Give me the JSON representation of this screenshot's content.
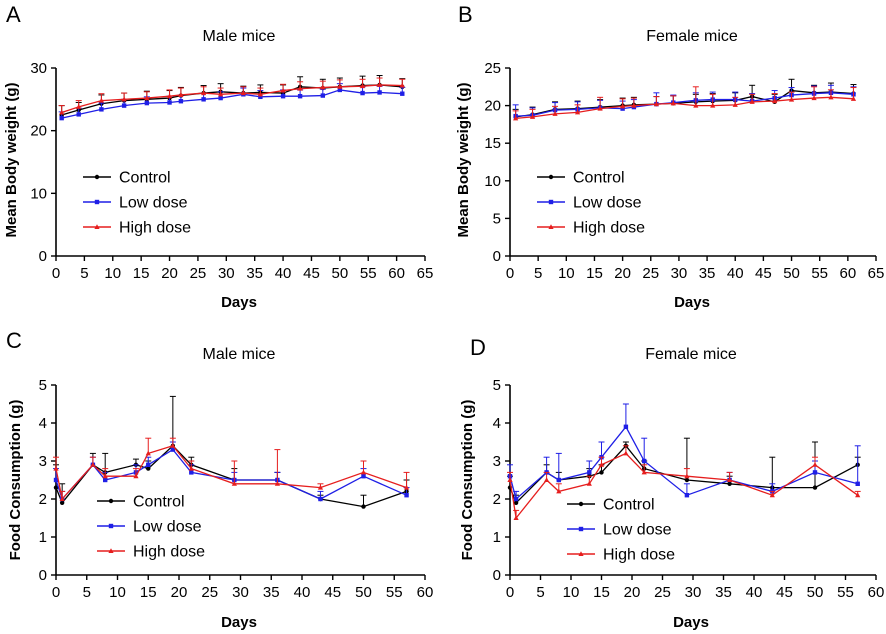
{
  "chart_data": [
    {
      "panel": "A",
      "type": "line",
      "title": "Male mice",
      "xlabel": "Days",
      "ylabel": "Mean Body weight (g)",
      "xlim": [
        0,
        65
      ],
      "ylim": [
        0,
        30
      ],
      "xticks": [
        "0",
        "5",
        "10",
        "15",
        "20",
        "25",
        "30",
        "35",
        "40",
        "45",
        "50",
        "55",
        "60",
        "65"
      ],
      "yticks": [
        "0",
        "10",
        "20",
        "30"
      ],
      "legend_position": "center-left",
      "x": [
        1,
        4,
        8,
        12,
        16,
        20,
        22,
        26,
        29,
        33,
        36,
        40,
        43,
        47,
        50,
        54,
        57,
        61
      ],
      "series": [
        {
          "name": "Control",
          "color": "#000000",
          "marker": "circle",
          "values": [
            22.5,
            23.3,
            24.3,
            24.8,
            25.0,
            25.2,
            25.6,
            26.0,
            26.2,
            26.0,
            26.1,
            26.0,
            27.0,
            26.8,
            27.0,
            27.2,
            27.3,
            27.0
          ],
          "errors": [
            1.5,
            1.2,
            1.4,
            1.2,
            1.3,
            1.2,
            1.3,
            1.2,
            1.3,
            1.1,
            1.2,
            1.3,
            1.6,
            1.4,
            1.4,
            1.5,
            1.5,
            1.3
          ]
        },
        {
          "name": "Low dose",
          "color": "#1f1fe6",
          "marker": "square",
          "values": [
            22.0,
            22.6,
            23.4,
            24.0,
            24.4,
            24.5,
            24.7,
            25.0,
            25.2,
            25.8,
            25.4,
            25.5,
            25.5,
            25.6,
            26.5,
            26.0,
            26.1,
            25.9
          ],
          "errors": [
            1.0,
            1.0,
            1.0,
            1.0,
            1.0,
            1.0,
            1.0,
            1.0,
            1.0,
            1.0,
            1.0,
            1.0,
            1.0,
            1.0,
            1.0,
            1.0,
            1.0,
            1.0
          ]
        },
        {
          "name": "High dose",
          "color": "#e61e1e",
          "marker": "triangle",
          "values": [
            22.9,
            23.8,
            24.8,
            25.0,
            25.2,
            25.5,
            25.7,
            26.0,
            25.8,
            26.0,
            25.8,
            26.4,
            26.7,
            26.9,
            27.0,
            27.1,
            27.3,
            27.2
          ],
          "errors": [
            1.1,
            1.0,
            1.1,
            1.0,
            1.0,
            1.0,
            1.1,
            1.0,
            1.0,
            1.0,
            1.0,
            1.0,
            1.1,
            1.0,
            1.1,
            1.1,
            1.1,
            1.0
          ]
        }
      ]
    },
    {
      "panel": "B",
      "type": "line",
      "title": "Female mice",
      "xlabel": "Days",
      "ylabel": "Mean Body weight (g)",
      "xlim": [
        0,
        65
      ],
      "ylim": [
        0,
        25
      ],
      "xticks": [
        "0",
        "5",
        "10",
        "15",
        "20",
        "25",
        "30",
        "35",
        "40",
        "45",
        "50",
        "55",
        "60",
        "65"
      ],
      "yticks": [
        "0",
        "5",
        "10",
        "15",
        "20",
        "25"
      ],
      "legend_position": "center-left",
      "x": [
        1,
        4,
        8,
        12,
        16,
        20,
        22,
        26,
        29,
        33,
        36,
        40,
        43,
        47,
        50,
        54,
        57,
        61
      ],
      "series": [
        {
          "name": "Control",
          "color": "#000000",
          "marker": "circle",
          "values": [
            18.5,
            18.8,
            19.5,
            19.6,
            19.8,
            20.0,
            20.1,
            20.2,
            20.3,
            20.5,
            20.6,
            20.7,
            21.2,
            20.5,
            22.0,
            21.7,
            21.8,
            21.6
          ],
          "errors": [
            1.0,
            1.0,
            1.0,
            1.0,
            1.0,
            1.0,
            1.0,
            1.0,
            1.0,
            1.0,
            1.0,
            1.0,
            1.5,
            1.0,
            1.5,
            1.0,
            1.2,
            1.2
          ]
        },
        {
          "name": "Low dose",
          "color": "#1f1fe6",
          "marker": "square",
          "values": [
            18.6,
            18.7,
            19.4,
            19.5,
            19.7,
            19.6,
            19.8,
            20.2,
            20.4,
            20.7,
            20.8,
            20.8,
            20.6,
            21.0,
            21.4,
            21.6,
            21.7,
            21.5
          ],
          "errors": [
            1.5,
            1.0,
            1.0,
            1.0,
            1.0,
            1.0,
            1.0,
            1.5,
            1.0,
            1.0,
            1.0,
            1.0,
            1.0,
            1.0,
            1.0,
            1.0,
            1.0,
            1.0
          ]
        },
        {
          "name": "High dose",
          "color": "#e61e1e",
          "marker": "triangle",
          "values": [
            18.3,
            18.5,
            18.9,
            19.1,
            19.6,
            19.9,
            20.0,
            20.2,
            20.3,
            20.0,
            20.0,
            20.1,
            20.5,
            20.6,
            20.8,
            21.0,
            21.1,
            20.9
          ],
          "errors": [
            1.0,
            1.0,
            1.0,
            1.0,
            1.5,
            1.0,
            1.0,
            1.0,
            1.0,
            2.5,
            1.5,
            1.0,
            1.0,
            1.0,
            1.0,
            1.5,
            1.0,
            1.5
          ]
        }
      ]
    },
    {
      "panel": "C",
      "type": "line",
      "title": "Male mice",
      "xlabel": "Days",
      "ylabel": "Food Consumption (g)",
      "xlim": [
        0,
        60
      ],
      "ylim": [
        0,
        5
      ],
      "xticks": [
        "0",
        "5",
        "10",
        "15",
        "20",
        "25",
        "30",
        "35",
        "40",
        "45",
        "50",
        "55",
        "60"
      ],
      "yticks": [
        "0",
        "1",
        "2",
        "3",
        "4",
        "5"
      ],
      "legend_position": "bottom-center",
      "x": [
        0,
        1,
        6,
        8,
        13,
        15,
        19,
        22,
        29,
        36,
        43,
        50,
        57
      ],
      "series": [
        {
          "name": "Control",
          "color": "#000000",
          "marker": "circle",
          "values": [
            2.3,
            1.9,
            2.9,
            2.7,
            2.9,
            2.8,
            3.4,
            2.9,
            2.5,
            2.5,
            2.0,
            1.8,
            2.2
          ],
          "errors": [
            0.6,
            0.5,
            0.3,
            0.5,
            0.15,
            0.2,
            1.3,
            0.2,
            0.3,
            0.2,
            0.1,
            0.3,
            0.3
          ]
        },
        {
          "name": "Low dose",
          "color": "#1f1fe6",
          "marker": "square",
          "values": [
            2.5,
            2.0,
            2.9,
            2.5,
            2.7,
            2.9,
            3.3,
            2.7,
            2.5,
            2.5,
            2.0,
            2.6,
            2.1
          ],
          "errors": [
            0.3,
            0.2,
            0.2,
            0.2,
            0.2,
            0.2,
            0.2,
            0.2,
            0.2,
            0.2,
            0.2,
            0.2,
            0.2
          ]
        },
        {
          "name": "High dose",
          "color": "#e61e1e",
          "marker": "triangle",
          "values": [
            2.8,
            2.0,
            2.9,
            2.6,
            2.6,
            3.2,
            3.4,
            2.8,
            2.4,
            2.4,
            2.3,
            2.7,
            2.3
          ],
          "errors": [
            0.3,
            0.2,
            0.2,
            0.2,
            0.2,
            0.4,
            0.2,
            0.2,
            0.6,
            0.9,
            0.1,
            0.3,
            0.4
          ]
        }
      ]
    },
    {
      "panel": "D",
      "type": "line",
      "title": "Female mice",
      "xlabel": "Days",
      "ylabel": "Food Consumption (g)",
      "xlim": [
        0,
        60
      ],
      "ylim": [
        0,
        5
      ],
      "xticks": [
        "0",
        "5",
        "10",
        "15",
        "20",
        "25",
        "30",
        "35",
        "40",
        "45",
        "50",
        "55",
        "60"
      ],
      "yticks": [
        "0",
        "1",
        "2",
        "3",
        "4",
        "5"
      ],
      "legend_position": "bottom-center",
      "x": [
        0,
        1,
        6,
        8,
        13,
        15,
        19,
        22,
        29,
        36,
        43,
        50,
        57
      ],
      "series": [
        {
          "name": "Control",
          "color": "#000000",
          "marker": "circle",
          "values": [
            2.3,
            1.9,
            2.7,
            2.5,
            2.6,
            2.7,
            3.4,
            2.8,
            2.5,
            2.4,
            2.3,
            2.3,
            2.9
          ],
          "errors": [
            0.3,
            0.2,
            0.2,
            0.2,
            0.2,
            0.2,
            0.1,
            0.2,
            1.1,
            0.2,
            0.8,
            1.2,
            0.2
          ]
        },
        {
          "name": "Low dose",
          "color": "#1f1fe6",
          "marker": "square",
          "values": [
            2.6,
            2.0,
            2.7,
            2.5,
            2.7,
            3.1,
            3.9,
            3.0,
            2.1,
            2.5,
            2.2,
            2.7,
            2.4
          ],
          "errors": [
            0.3,
            0.2,
            0.4,
            0.7,
            0.3,
            0.4,
            0.6,
            0.6,
            0.3,
            0.2,
            0.2,
            0.3,
            1.0
          ]
        },
        {
          "name": "High dose",
          "color": "#e61e1e",
          "marker": "triangle",
          "values": [
            2.5,
            1.5,
            2.5,
            2.2,
            2.4,
            2.9,
            3.2,
            2.7,
            2.6,
            2.5,
            2.1,
            2.9,
            2.1
          ],
          "errors": [
            0.2,
            0.2,
            0.2,
            0.2,
            0.2,
            0.2,
            0.2,
            0.2,
            0.2,
            0.2,
            0.1,
            0.2,
            0.1
          ]
        }
      ]
    }
  ]
}
